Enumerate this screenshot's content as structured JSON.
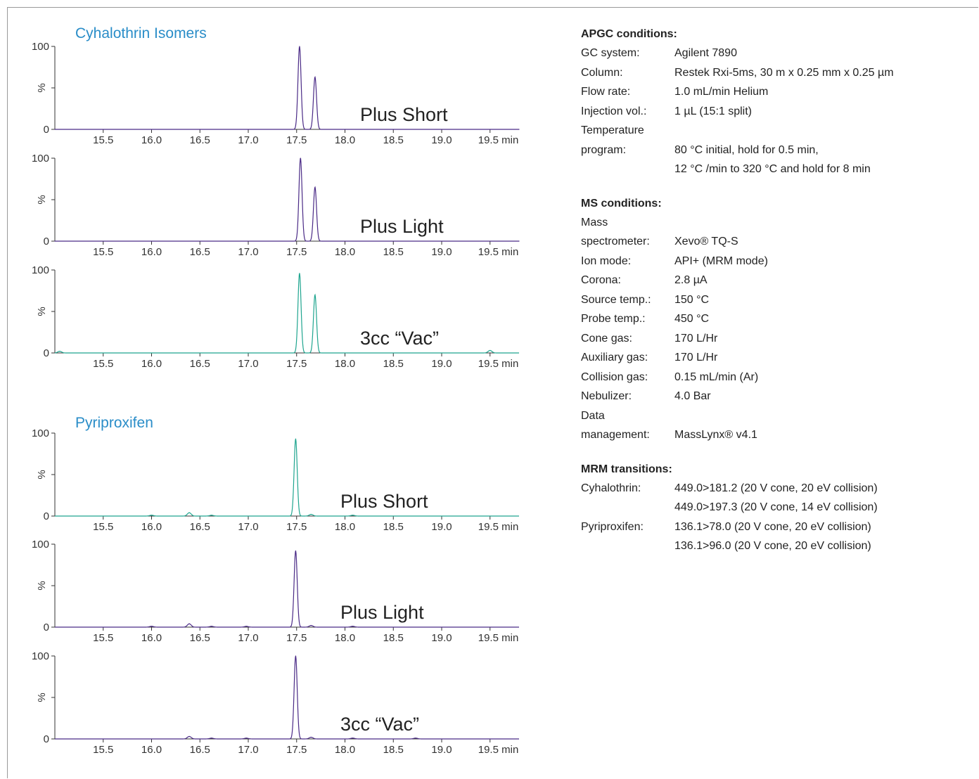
{
  "chart_data": [
    {
      "type": "line",
      "group": "Cyhalothrin Isomers",
      "label": "Plus Short",
      "color": "#4a2a86",
      "xlim": [
        15.0,
        19.8
      ],
      "ylim": [
        0,
        100
      ],
      "ylabel": "%",
      "yticks": [
        "100",
        "%",
        "0"
      ],
      "xticks": [
        "15.5",
        "16.0",
        "16.5",
        "17.0",
        "17.5",
        "18.0",
        "18.5",
        "19.0",
        "19.5 min"
      ],
      "series": [
        {
          "x": [
            15.0,
            17.53,
            17.69,
            19.8
          ],
          "y": [
            0,
            100,
            63,
            0
          ]
        }
      ]
    },
    {
      "type": "line",
      "group": "Cyhalothrin Isomers",
      "label": "Plus Light",
      "color": "#4a2a86",
      "xlim": [
        15.0,
        19.8
      ],
      "ylim": [
        0,
        100
      ],
      "ylabel": "%",
      "yticks": [
        "100",
        "%",
        "0"
      ],
      "xticks": [
        "15.5",
        "16.0",
        "16.5",
        "17.0",
        "17.5",
        "18.0",
        "18.5",
        "19.0",
        "19.5 min"
      ],
      "series": [
        {
          "x": [
            15.0,
            17.54,
            17.69,
            19.8
          ],
          "y": [
            0,
            100,
            65,
            0
          ]
        }
      ]
    },
    {
      "type": "line",
      "group": "Cyhalothrin Isomers",
      "label": "3cc “Vac”",
      "color": "#1fa58f",
      "xlim": [
        15.0,
        19.8
      ],
      "ylim": [
        0,
        100
      ],
      "ylabel": "%",
      "yticks": [
        "100",
        "%",
        "0"
      ],
      "xticks": [
        "15.5",
        "16.0",
        "16.5",
        "17.0",
        "17.5",
        "18.0",
        "18.5",
        "19.0",
        "19.5 min"
      ],
      "series": [
        {
          "x": [
            15.05,
            17.53,
            17.69,
            19.5
          ],
          "y": [
            2,
            96,
            70,
            3
          ]
        }
      ]
    },
    {
      "type": "line",
      "group": "Pyriproxifen",
      "label": "Plus Short",
      "color": "#1fa58f",
      "xlim": [
        15.0,
        19.8
      ],
      "ylim": [
        0,
        100
      ],
      "ylabel": "%",
      "yticks": [
        "100",
        "%",
        "0"
      ],
      "xticks": [
        "15.5",
        "16.0",
        "16.5",
        "17.0",
        "17.5",
        "18.0",
        "18.5",
        "19.0",
        "19.5 min"
      ],
      "series": [
        {
          "x": [
            16.0,
            16.39,
            16.62,
            17.49,
            17.65,
            18.08
          ],
          "y": [
            1,
            4,
            1,
            93,
            2,
            1
          ]
        }
      ]
    },
    {
      "type": "line",
      "group": "Pyriproxifen",
      "label": "Plus Light",
      "color": "#4a2a86",
      "xlim": [
        15.0,
        19.8
      ],
      "ylim": [
        0,
        100
      ],
      "ylabel": "%",
      "yticks": [
        "100",
        "%",
        "0"
      ],
      "xticks": [
        "15.5",
        "16.0",
        "16.5",
        "17.0",
        "17.5",
        "18.0",
        "18.5",
        "19.0",
        "19.5 min"
      ],
      "series": [
        {
          "x": [
            16.0,
            16.39,
            16.62,
            16.98,
            17.49,
            17.65,
            18.08
          ],
          "y": [
            1,
            4,
            1,
            1,
            92,
            2,
            1
          ]
        }
      ]
    },
    {
      "type": "line",
      "group": "Pyriproxifen",
      "label": "3cc “Vac”",
      "color": "#4a2a86",
      "xlim": [
        15.0,
        19.8
      ],
      "ylim": [
        0,
        100
      ],
      "ylabel": "%",
      "yticks": [
        "100",
        "%",
        "0"
      ],
      "xticks": [
        "15.5",
        "16.0",
        "16.5",
        "17.0",
        "17.5",
        "18.0",
        "18.5",
        "19.0",
        "19.5 min"
      ],
      "series": [
        {
          "x": [
            16.39,
            16.62,
            16.98,
            17.49,
            17.65,
            18.08,
            18.73
          ],
          "y": [
            3,
            1,
            1,
            100,
            2,
            1,
            1
          ]
        }
      ]
    }
  ],
  "groups": {
    "cyhalothrin_title": "Cyhalothrin Isomers",
    "pyriproxifen_title": "Pyriproxifen",
    "title_color": "#2a8dc8"
  },
  "apgc": {
    "title": "APGC conditions:",
    "rows": [
      {
        "label": [
          "GC system:"
        ],
        "value": [
          "Agilent 7890"
        ]
      },
      {
        "label": [
          "Column:"
        ],
        "value": [
          "Restek Rxi-5ms, 30 m x 0.25 mm x 0.25 µm"
        ]
      },
      {
        "label": [
          "Flow rate:"
        ],
        "value": [
          "1.0 mL/min Helium"
        ]
      },
      {
        "label": [
          "Injection vol.:"
        ],
        "value": [
          "1 µL (15:1 split)"
        ]
      },
      {
        "label": [
          "Temperature",
          "program:",
          ""
        ],
        "value": [
          "",
          "80 °C initial, hold for 0.5 min,",
          "12 °C /min to 320 °C and hold for 8 min"
        ]
      }
    ]
  },
  "ms": {
    "title": "MS conditions:",
    "rows": [
      {
        "label": [
          "Mass",
          "spectrometer:"
        ],
        "value": [
          "",
          "Xevo® TQ-S"
        ]
      },
      {
        "label": [
          "Ion mode:"
        ],
        "value": [
          "API+ (MRM mode)"
        ]
      },
      {
        "label": [
          "Corona:"
        ],
        "value": [
          "2.8 µA"
        ]
      },
      {
        "label": [
          "Source temp.:"
        ],
        "value": [
          "150 °C"
        ]
      },
      {
        "label": [
          "Probe temp.:"
        ],
        "value": [
          "450 °C"
        ]
      },
      {
        "label": [
          "Cone gas:"
        ],
        "value": [
          "170 L/Hr"
        ]
      },
      {
        "label": [
          "Auxiliary gas:"
        ],
        "value": [
          "170 L/Hr"
        ]
      },
      {
        "label": [
          "Collision gas:"
        ],
        "value": [
          "0.15 mL/min (Ar)"
        ]
      },
      {
        "label": [
          "Nebulizer:"
        ],
        "value": [
          "4.0 Bar"
        ]
      },
      {
        "label": [
          "Data",
          "management:"
        ],
        "value": [
          "",
          "MassLynx® v4.1"
        ]
      }
    ]
  },
  "mrm": {
    "title": "MRM transitions:",
    "rows": [
      {
        "label": [
          "Cyhalothrin:",
          ""
        ],
        "value": [
          "449.0>181.2 (20 V cone, 20 eV collision)",
          "449.0>197.3 (20 V cone, 14 eV collision)"
        ]
      },
      {
        "label": [
          "Pyriproxifen:",
          ""
        ],
        "value": [
          "136.1>78.0 (20 V cone, 20 eV collision)",
          "136.1>96.0 (20 V cone, 20 eV collision)"
        ]
      }
    ]
  }
}
